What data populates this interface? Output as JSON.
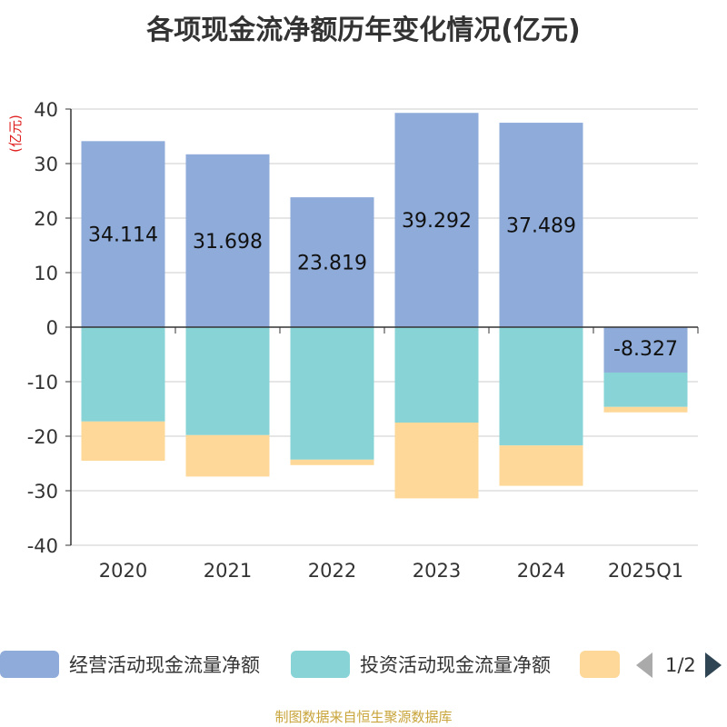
{
  "title": "各项现金流净额历年变化情况(亿元)",
  "footer": "制图数据来自恒生聚源数据库",
  "legend": {
    "items": [
      {
        "label": "经营活动现金流量净额",
        "color": "#8eabd9"
      },
      {
        "label": "投资活动现金流量净额",
        "color": "#87d3d6"
      },
      {
        "label": "",
        "color": "#fdd898"
      }
    ],
    "page": "1/2"
  },
  "chart_data": {
    "type": "bar",
    "stacked": true,
    "categories": [
      "2020",
      "2021",
      "2022",
      "2023",
      "2024",
      "2025Q1"
    ],
    "ylabel": "(亿元)",
    "ylim": [
      -40,
      40
    ],
    "yticks": [
      40,
      30,
      20,
      10,
      0,
      -10,
      -20,
      -30,
      -40
    ],
    "series": [
      {
        "name": "经营活动现金流量净额",
        "color": "#8eabd9",
        "values": [
          34.114,
          31.698,
          23.819,
          39.292,
          37.489,
          -8.327
        ],
        "labels": [
          "34.114",
          "31.698",
          "23.819",
          "39.292",
          "37.489",
          "-8.327"
        ]
      },
      {
        "name": "投资活动现金流量净额",
        "color": "#87d3d6",
        "values": [
          -17.3,
          -19.8,
          -24.3,
          -17.5,
          -21.7,
          -6.3
        ]
      },
      {
        "name": "",
        "color": "#fdd898",
        "values": [
          -7.2,
          -7.6,
          -1.0,
          -13.9,
          -7.4,
          -1.0
        ]
      }
    ]
  }
}
